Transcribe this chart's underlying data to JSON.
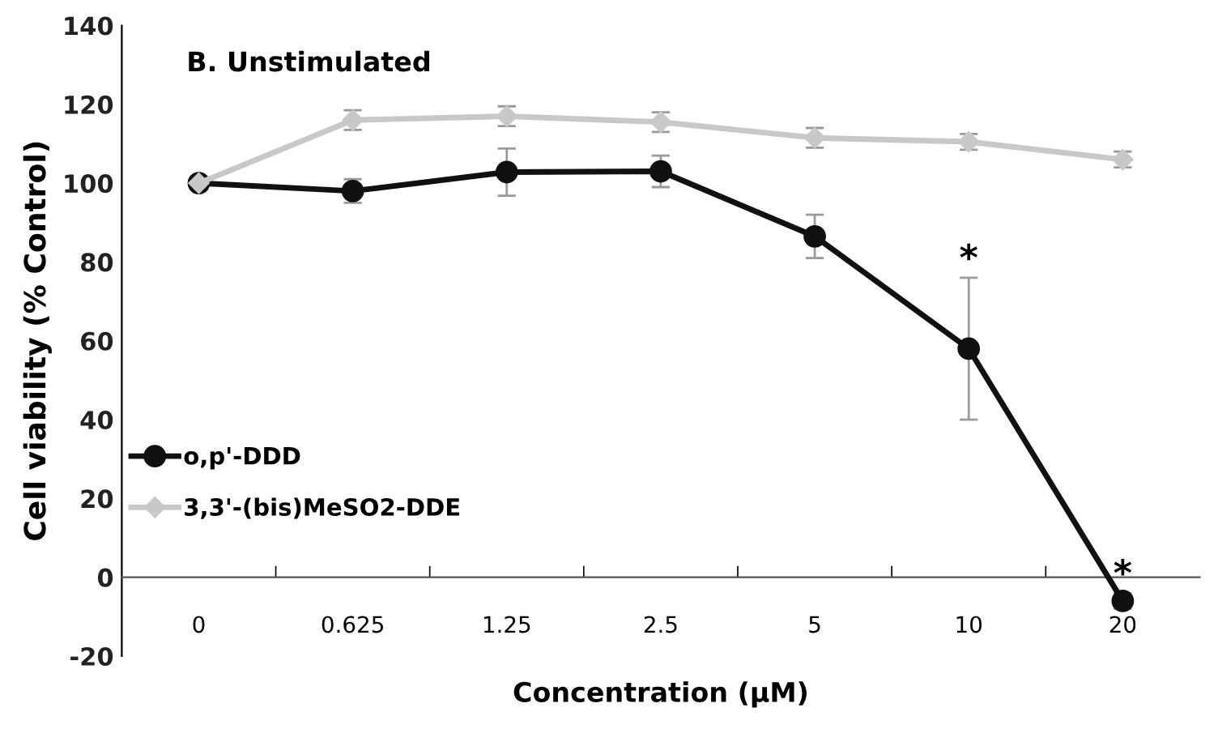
{
  "chart_data": {
    "type": "line",
    "title": "B. Unstimulated",
    "xlabel": "Concentration (µM)",
    "ylabel": "Cell viability (% Control)",
    "categories": [
      "0",
      "0.625",
      "1.25",
      "2.5",
      "5",
      "10",
      "20"
    ],
    "series": [
      {
        "name": "o,p'-DDD",
        "color": "#111111",
        "marker": "circle",
        "values": [
          100,
          98,
          102.8,
          103,
          86.5,
          58,
          -6
        ],
        "errors": [
          1.5,
          3,
          6,
          4,
          5.5,
          18,
          2
        ]
      },
      {
        "name": "3,3'-(bis)MeSO2-DDE",
        "color": "#c8c8c8",
        "marker": "diamond",
        "values": [
          100,
          116,
          117,
          115.5,
          111.5,
          110.5,
          106
        ],
        "errors": [
          1.5,
          2.5,
          2.5,
          2.5,
          2.5,
          2,
          2
        ]
      }
    ],
    "ylim": [
      -20,
      140
    ],
    "yticks": [
      -20,
      0,
      20,
      40,
      60,
      80,
      100,
      120,
      140
    ],
    "grid": false,
    "legend": "bottom left",
    "line_style": "solid",
    "annotations": [
      {
        "text": "*",
        "x": "10",
        "y": 76
      },
      {
        "text": "*",
        "x": "20",
        "y": -4
      }
    ]
  }
}
